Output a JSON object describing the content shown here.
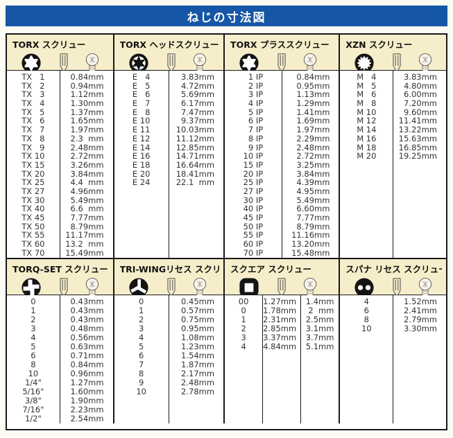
{
  "title": "ねじの寸法図",
  "colors": {
    "title_bg": "#1557a6",
    "title_fg": "#ffffff",
    "panel_header_bg": "#f6eeca",
    "body_bg": "#ffffff",
    "border": "#181818",
    "icon_black": "#141414"
  },
  "panels": {
    "top": [
      {
        "id": "torx",
        "title": "TORX スクリュー",
        "icons": [
          "torx-internal-icon",
          "screw-side-icon",
          "screw-head-icon"
        ],
        "rows": [
          [
            "TX  1",
            "0.84mm"
          ],
          [
            "TX  2",
            "0.94mm"
          ],
          [
            "TX  3",
            "1.12mm"
          ],
          [
            "TX  4",
            "1.30mm"
          ],
          [
            "TX  5",
            "1.37mm"
          ],
          [
            "TX  6",
            "1.65mm"
          ],
          [
            "TX  7",
            "1.97mm"
          ],
          [
            "TX  8",
            "2.3 mm"
          ],
          [
            "TX  9",
            "2.48mm"
          ],
          [
            "TX 10",
            "2.72mm"
          ],
          [
            "TX 15",
            "3.26mm"
          ],
          [
            "TX 20",
            "3.84mm"
          ],
          [
            "TX 25",
            "4.4 mm"
          ],
          [
            "TX 27",
            "4.96mm"
          ],
          [
            "TX 30",
            "5.49mm"
          ],
          [
            "TX 40",
            "6.6 mm"
          ],
          [
            "TX 45",
            "7.77mm"
          ],
          [
            "TX 50",
            "8.79mm"
          ],
          [
            "TX 55",
            "11.17mm"
          ],
          [
            "TX 60",
            "13.2 mm"
          ],
          [
            "TX 70",
            "15.49mm"
          ]
        ]
      },
      {
        "id": "torx-head",
        "title": "TORX ヘッドスクリュー",
        "icons": [
          "torx-external-icon",
          "screw-side-icon",
          "screw-head-icon"
        ],
        "rows": [
          [
            "E  4",
            "3.83mm"
          ],
          [
            "E  5",
            "4.72mm"
          ],
          [
            "E  6",
            "5.69mm"
          ],
          [
            "E  7",
            "6.17mm"
          ],
          [
            "E  8",
            "7.47mm"
          ],
          [
            "E 10",
            "9.37mm"
          ],
          [
            "E 11",
            "10.03mm"
          ],
          [
            "E 12",
            "11.12mm"
          ],
          [
            "E 14",
            "12.85mm"
          ],
          [
            "E 16",
            "14.71mm"
          ],
          [
            "E 18",
            "16.64mm"
          ],
          [
            "E 20",
            "18.41mm"
          ],
          [
            "E 24",
            "22.1 mm"
          ]
        ]
      },
      {
        "id": "torx-plus",
        "title": "TORX プラススクリュー",
        "icons": [
          "torx-internal-icon",
          "screw-side-icon",
          "screw-head-icon"
        ],
        "rows": [
          [
            " 1 IP",
            "0.84mm"
          ],
          [
            " 2 IP",
            "0.95mm"
          ],
          [
            " 3 IP",
            "1.13mm"
          ],
          [
            " 4 IP",
            "1.29mm"
          ],
          [
            " 5 IP",
            "1.41mm"
          ],
          [
            " 6 IP",
            "1.69mm"
          ],
          [
            " 7 IP",
            "1.97mm"
          ],
          [
            " 8 IP",
            "2.29mm"
          ],
          [
            " 9 IP",
            "2.48mm"
          ],
          [
            "10 IP",
            "2.72mm"
          ],
          [
            "15 IP",
            "3.25mm"
          ],
          [
            "20 IP",
            "3.84mm"
          ],
          [
            "25 IP",
            "4.39mm"
          ],
          [
            "27 IP",
            "4.95mm"
          ],
          [
            "30 IP",
            "5.49mm"
          ],
          [
            "40 IP",
            "6.60mm"
          ],
          [
            "45 IP",
            "7.77mm"
          ],
          [
            "50 IP",
            "8.79mm"
          ],
          [
            "55 IP",
            "11.16mm"
          ],
          [
            "60 IP",
            "13.20mm"
          ],
          [
            "70 IP",
            "15.48mm"
          ]
        ]
      },
      {
        "id": "xzn",
        "title": "XZN スクリュー",
        "icons": [
          "xzn-icon",
          "screw-side-icon",
          "screw-head-icon"
        ],
        "rows": [
          [
            "M  4",
            "3.83mm"
          ],
          [
            "M  5",
            "4.80mm"
          ],
          [
            "M  6",
            "6.00mm"
          ],
          [
            "M  8",
            "7.20mm"
          ],
          [
            "M 10",
            "9.60mm"
          ],
          [
            "M 12",
            "11.41mm"
          ],
          [
            "M 14",
            "13.22mm"
          ],
          [
            "M 16",
            "15.63mm"
          ],
          [
            "M 18",
            "16.85mm"
          ],
          [
            "M 20",
            "19.25mm"
          ]
        ]
      }
    ],
    "bottom": [
      {
        "id": "torq-set",
        "title": "TORQ-SET スクリュー",
        "icons": [
          "torq-set-icon",
          "screw-side-icon",
          "screw-head-icon"
        ],
        "rows": [
          [
            "0",
            "0.43mm"
          ],
          [
            "1",
            "0.43mm"
          ],
          [
            "2",
            "0.43mm"
          ],
          [
            "3",
            "0.48mm"
          ],
          [
            "4",
            "0.56mm"
          ],
          [
            "5",
            "0.63mm"
          ],
          [
            "6",
            "0.71mm"
          ],
          [
            "8",
            "0.84mm"
          ],
          [
            "10",
            "0.96mm"
          ],
          [
            "1/4\"",
            "1.27mm"
          ],
          [
            "5/16\"",
            "1.60mm"
          ],
          [
            "3/8\"",
            "1.90mm"
          ],
          [
            "7/16\"",
            "2.23mm"
          ],
          [
            "1/2\"",
            "2.54mm"
          ]
        ]
      },
      {
        "id": "tri-wing",
        "title": "TRI-WINGリセス スクリュー",
        "icons": [
          "tri-wing-icon",
          "screw-side-icon",
          "screw-head-icon"
        ],
        "rows": [
          [
            "0",
            "0.45mm"
          ],
          [
            "1",
            "0.57mm"
          ],
          [
            "2",
            "0.75mm"
          ],
          [
            "3",
            "0.95mm"
          ],
          [
            "4",
            "1.08mm"
          ],
          [
            "5",
            "1.23mm"
          ],
          [
            "6",
            "1.54mm"
          ],
          [
            "7",
            "1.87mm"
          ],
          [
            "8",
            "2.17mm"
          ],
          [
            "9",
            "2.48mm"
          ],
          [
            "10",
            "2.78mm"
          ]
        ]
      },
      {
        "id": "square",
        "title": "スクエア スクリュー",
        "icons": [
          "square-icon",
          "screw-side-icon",
          "screw-head-icon"
        ],
        "rows": [
          [
            "00",
            "1.27mm",
            "1.4mm"
          ],
          [
            "0",
            "1.78mm",
            "2 mm"
          ],
          [
            "1",
            "2.31mm",
            "2.5mm"
          ],
          [
            "2",
            "2.85mm",
            "3.1mm"
          ],
          [
            "3",
            "3.37mm",
            "3.7mm"
          ],
          [
            "4",
            "4.84mm",
            "5.1mm"
          ]
        ]
      },
      {
        "id": "spanner",
        "title": "スパナ リセス スクリュー",
        "icons": [
          "spanner-icon",
          "screw-side-icon",
          "screw-head-icon"
        ],
        "rows": [
          [
            "4",
            "1.52mm"
          ],
          [
            "6",
            "2.41mm"
          ],
          [
            "8",
            "2.79mm"
          ],
          [
            "10",
            "3.30mm"
          ]
        ]
      }
    ]
  }
}
